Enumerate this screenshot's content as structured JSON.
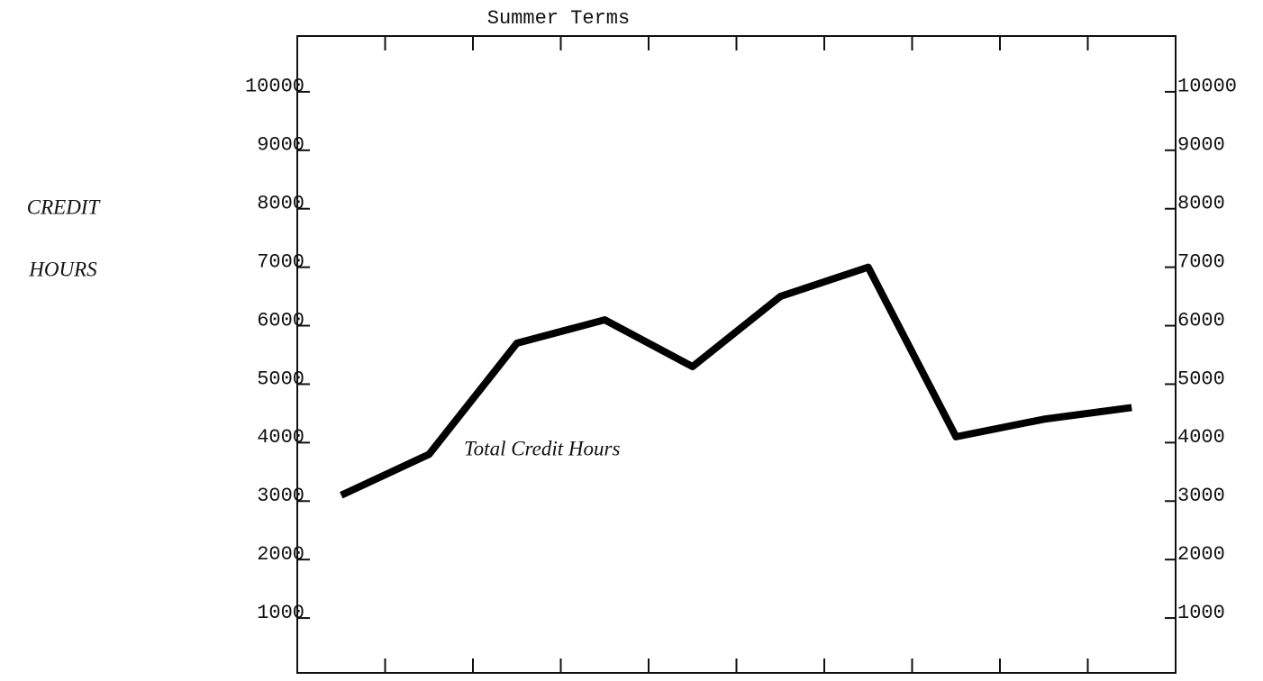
{
  "chart_data": {
    "type": "line",
    "title": "Summer Terms",
    "ylabel": [
      "CREDIT",
      "HOURS"
    ],
    "annotation": "Total Credit Hours",
    "categories": [
      null,
      null,
      null,
      null,
      null,
      null,
      null,
      null,
      null,
      null
    ],
    "values": [
      3100,
      3800,
      5700,
      6100,
      5300,
      6500,
      7000,
      4100,
      4400,
      4600
    ],
    "color": "#000000",
    "ylim": [
      0,
      11000
    ],
    "yticks": [
      1000,
      2000,
      3000,
      4000,
      5000,
      6000,
      7000,
      8000,
      9000,
      10000
    ],
    "y2lim": [
      0,
      11000
    ],
    "y2ticks": [
      1000,
      2000,
      3000,
      4000,
      5000,
      6000,
      7000,
      8000,
      9000,
      10000
    ]
  }
}
